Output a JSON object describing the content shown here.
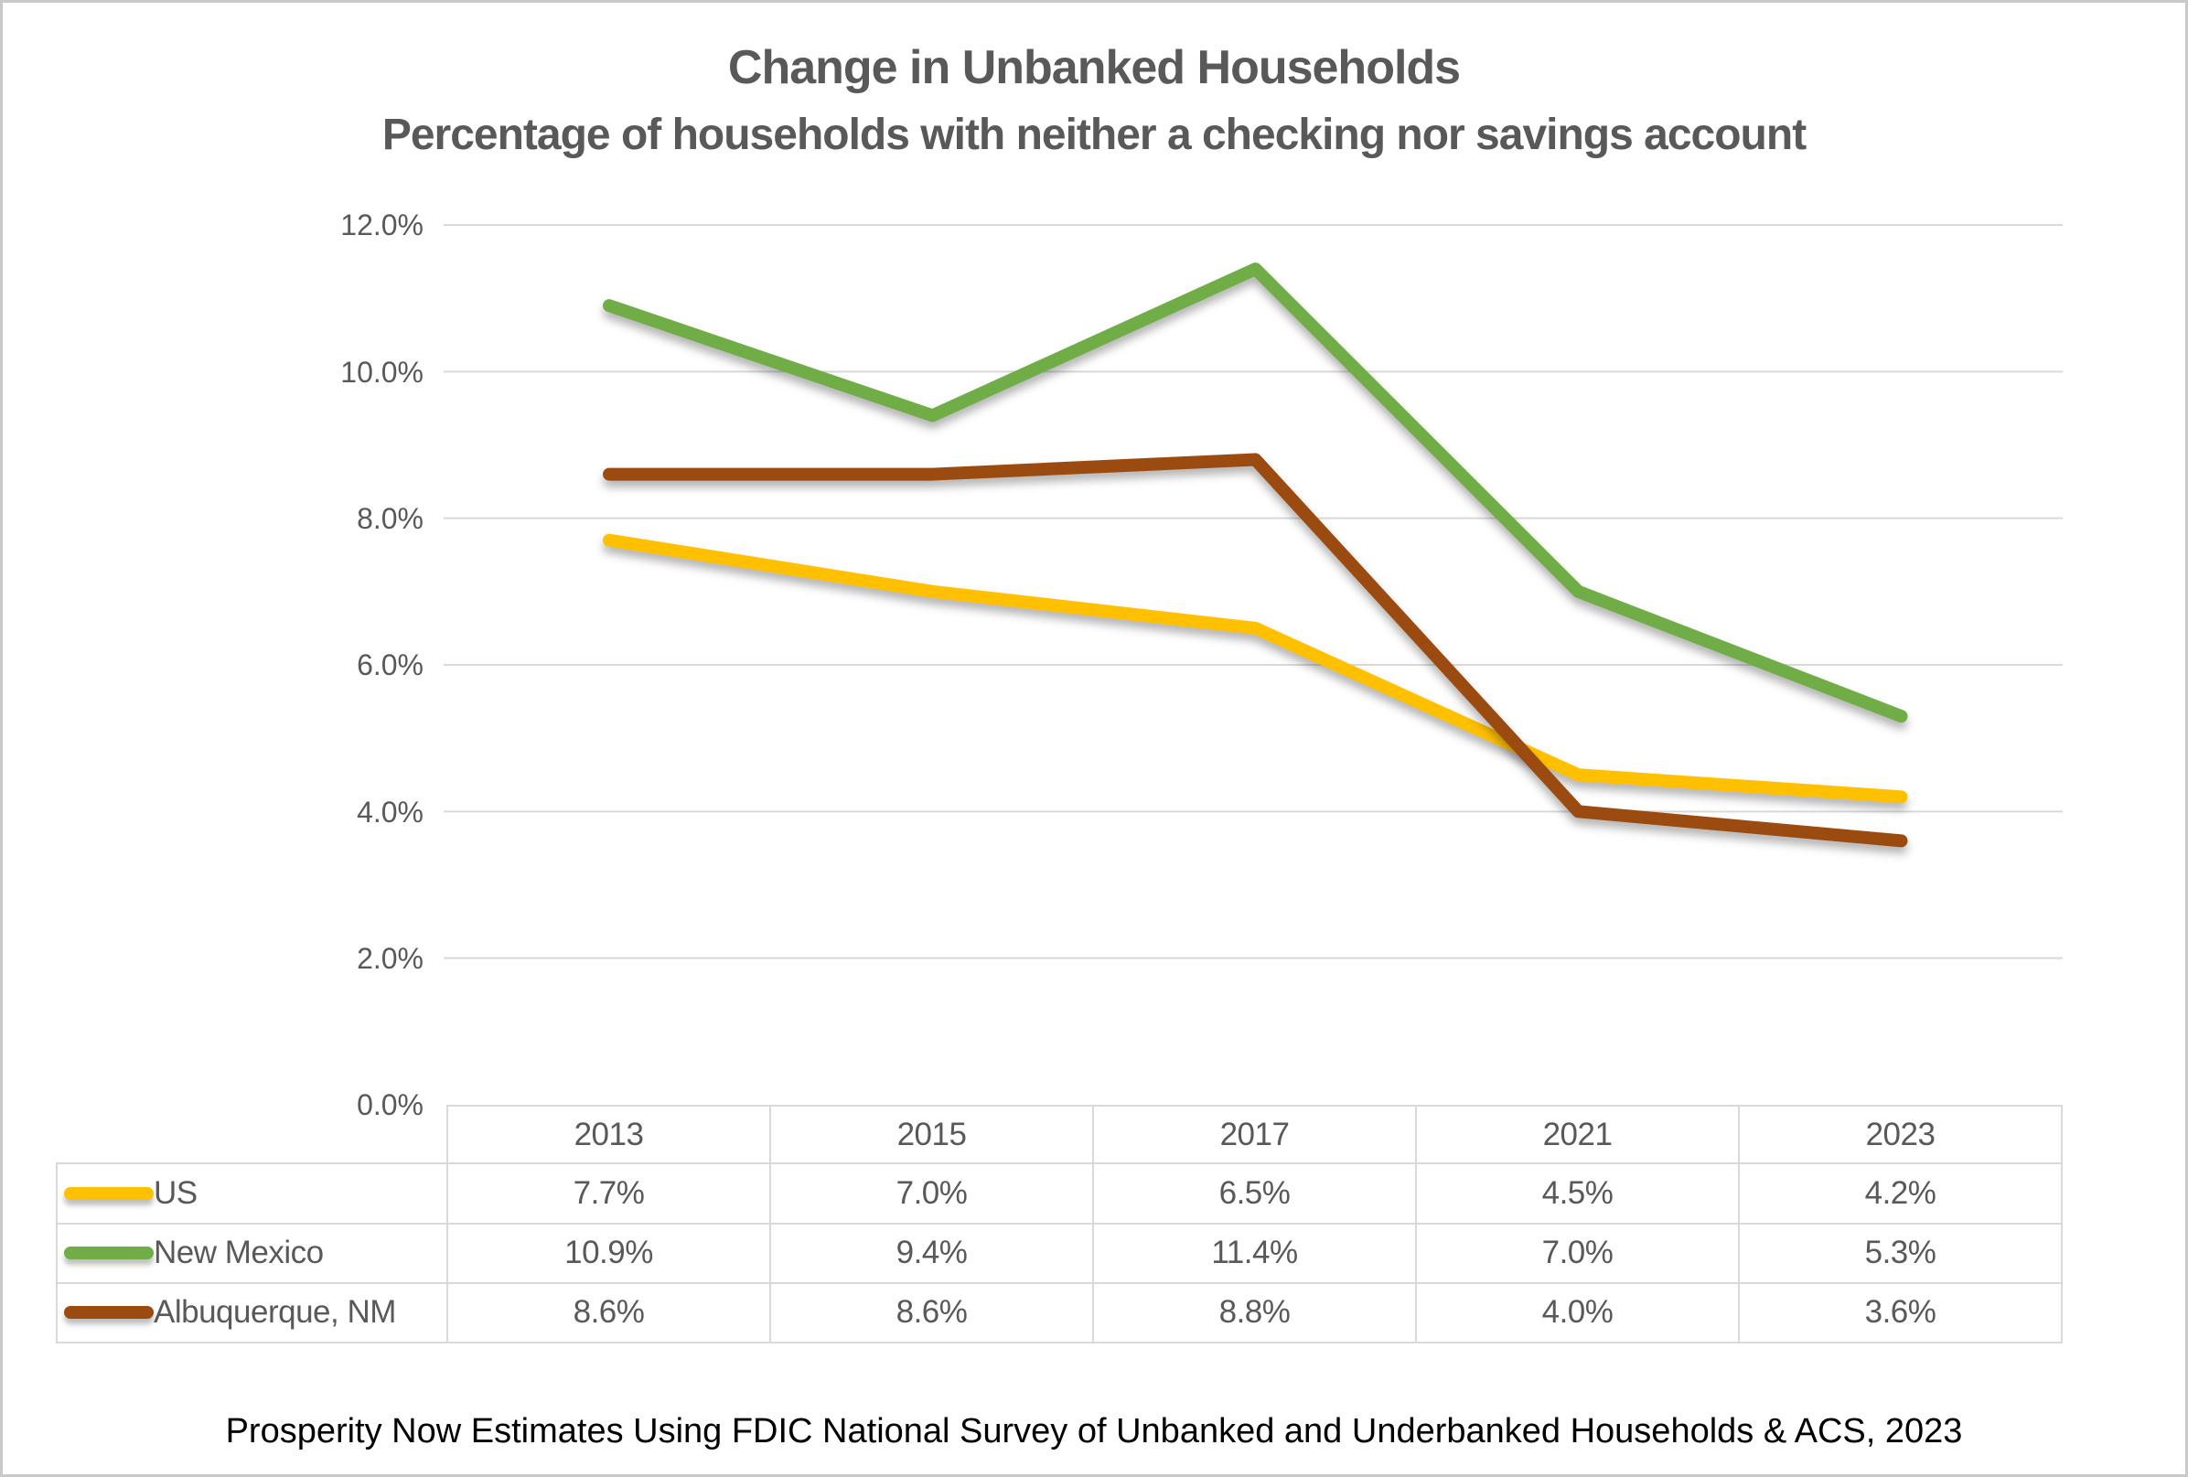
{
  "title": "Change in Unbanked Households",
  "subtitle": "Percentage of households with neither a checking nor savings account",
  "source_note": "Prosperity Now Estimates Using FDIC National Survey of Unbanked and Underbanked Households & ACS, 2023",
  "colors": {
    "us_series": "#FFC000",
    "new_mexico_series": "#70AD47",
    "albuquerque_series": "#9C4B10",
    "grid": "#D9D9D9",
    "text": "#595959"
  },
  "chart_data": {
    "type": "line",
    "title": "Change in Unbanked Households",
    "subtitle": "Percentage of households with neither a checking nor savings account",
    "categories": [
      "2013",
      "2015",
      "2017",
      "2021",
      "2023"
    ],
    "series": [
      {
        "name": "US",
        "color": "#FFC000",
        "values": [
          7.7,
          7.0,
          6.5,
          4.5,
          4.2
        ],
        "labels": [
          "7.7%",
          "7.0%",
          "6.5%",
          "4.5%",
          "4.2%"
        ]
      },
      {
        "name": "New Mexico",
        "color": "#70AD47",
        "values": [
          10.9,
          9.4,
          11.4,
          7.0,
          5.3
        ],
        "labels": [
          "10.9%",
          "9.4%",
          "11.4%",
          "7.0%",
          "5.3%"
        ]
      },
      {
        "name": "Albuquerque, NM",
        "color": "#9C4B10",
        "values": [
          8.6,
          8.6,
          8.8,
          4.0,
          3.6
        ],
        "labels": [
          "8.6%",
          "8.6%",
          "8.8%",
          "4.0%",
          "3.6%"
        ]
      }
    ],
    "xlabel": "",
    "ylabel": "",
    "ylim": [
      0,
      12
    ],
    "ytick_step": 2,
    "ytick_labels": [
      "12.0%",
      "10.0%",
      "8.0%",
      "6.0%",
      "4.0%",
      "2.0%",
      "0.0%"
    ],
    "grid": true,
    "legend_position": "table-left-column"
  }
}
